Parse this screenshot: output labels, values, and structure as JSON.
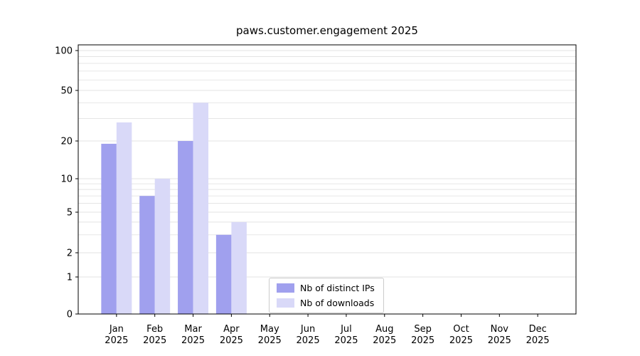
{
  "chart_data": {
    "type": "bar",
    "title": "paws.customer.engagement 2025",
    "categories": [
      "Jan",
      "Feb",
      "Mar",
      "Apr",
      "May",
      "Jun",
      "Jul",
      "Aug",
      "Sep",
      "Oct",
      "Nov",
      "Dec"
    ],
    "xtick_year": "2025",
    "yscale": "symlog",
    "yticks": [
      0,
      1,
      2,
      5,
      10,
      20,
      50,
      100
    ],
    "ylim": [
      0,
      110
    ],
    "grid": "horizontal-minor-log",
    "legend_position": "lower center",
    "series": [
      {
        "name": "Nb of distinct IPs",
        "color": "#a0a0ee",
        "values": [
          19,
          7,
          20,
          3,
          0,
          0,
          0,
          0,
          0,
          0,
          0,
          0
        ]
      },
      {
        "name": "Nb of downloads",
        "color": "#d9d9f8",
        "values": [
          28,
          10,
          40,
          4,
          0,
          0,
          0,
          0,
          0,
          0,
          0,
          0
        ]
      }
    ]
  }
}
